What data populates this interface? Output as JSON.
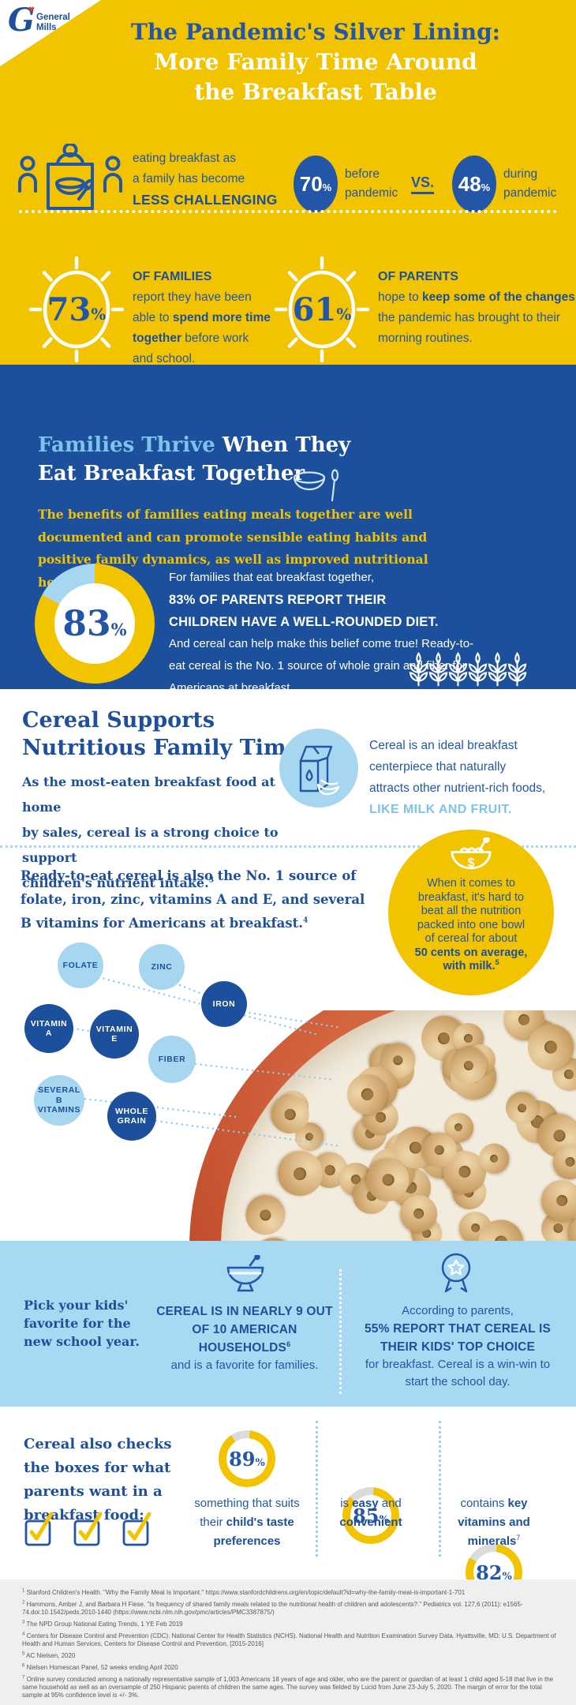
{
  "colors": {
    "yellow": "#F2C400",
    "deep_blue": "#1D4F9C",
    "blue": "#2456A8",
    "sky": "#7EC3EA",
    "light_blue": "#A6D6F0",
    "band_blue": "#A8D9F2",
    "gap_gray": "#DBDBDB",
    "bowl_red": "#BC4A2D",
    "milk": "#F2ECDF",
    "heart_red": "#E8352E",
    "footnote_bg": "#EFEFEF",
    "footnote_text": "#58595B",
    "white": "#FFFFFF"
  },
  "brand": {
    "monogram": "G",
    "heart": "♥",
    "line1": "General",
    "line2": "Mills"
  },
  "hero": {
    "title_l1": "The Pandemic's Silver Lining:",
    "title_l2": "More Family Time Around",
    "title_l3": "the Breakfast Table",
    "challenge_l1": "eating breakfast as",
    "challenge_l2": "a family has become",
    "challenge_l3": "LESS CHALLENGING",
    "before": {
      "value": "70",
      "unit": "%",
      "label_l1": "before",
      "label_l2": "pandemic"
    },
    "vs": "VS.",
    "during": {
      "value": "48",
      "unit": "%",
      "label_l1": "during",
      "label_l2": "pandemic"
    },
    "families": {
      "value": "73",
      "unit": "%",
      "title": "OF FAMILIES",
      "t1": "report they have been able to ",
      "b1": "spend more time together",
      "t2": " before work and school."
    },
    "parents": {
      "value": "61",
      "unit": "%",
      "title": "OF PARENTS",
      "t1": "hope to ",
      "b1": "keep some of the changes",
      "t2": " the pandemic has brought to their morning routines."
    }
  },
  "thrive": {
    "heading_accent": "Families Thrive",
    "heading_rest": " When They",
    "heading_l2": "Eat Breakfast Together",
    "intro_l1": "The benefits of families eating meals together are well",
    "intro_l2": "documented and can promote sensible eating habits and",
    "intro_l3": "positive family dynamics, as well as improved nutritional health.",
    "intro_sup": "1,2",
    "donut_value": "83",
    "donut_unit": "%",
    "caption_t1": "For families that eat breakfast together,",
    "caption_b1": "83% OF PARENTS REPORT THEIR CHILDREN HAVE A WELL-ROUNDED DIET.",
    "caption_t2": "And cereal can help make this belief come true! Ready-to-eat cereal is the No. 1 source of whole grain and fiber for Americans at breakfast."
  },
  "support": {
    "heading_l1": "Cereal Supports",
    "heading_l2": "Nutritious Family Time",
    "body_l1": "As the most-eaten breakfast food at home",
    "body_l2": "by sales, cereal is a strong choice to support",
    "body_l3": "children's nutrient intake.",
    "body_sup": "3",
    "milk_l1": "Cereal is an ideal breakfast",
    "milk_l2": "centerpiece that naturally",
    "milk_l3": "attracts other nutrient-rich foods,",
    "milk_accent": "LIKE MILK AND FRUIT."
  },
  "nutrients": {
    "intro_l1": "Ready-to-eat cereal is also the No. 1 source of",
    "intro_l2": "folate, iron, zinc, vitamins A and E, and several",
    "intro_l3": "B vitamins for Americans at breakfast.",
    "intro_sup": "4",
    "bubbles": [
      {
        "label": "FOLATE",
        "tone": "light"
      },
      {
        "label": "ZINC",
        "tone": "light"
      },
      {
        "label": "IRON",
        "tone": "dark"
      },
      {
        "label": "VITAMIN A",
        "tone": "dark"
      },
      {
        "label": "VITAMIN E",
        "tone": "dark"
      },
      {
        "label": "FIBER",
        "tone": "light"
      },
      {
        "label": "SEVERAL B VITAMINS",
        "tone": "light"
      },
      {
        "label": "WHOLE GRAIN",
        "tone": "dark"
      }
    ],
    "cost_l1": "When it comes to",
    "cost_l2": "breakfast, it's hard to",
    "cost_l3": "beat all the nutrition",
    "cost_l4": "packed into one bowl",
    "cost_l5": "of cereal for about",
    "cost_b1": "50 cents on average,",
    "cost_b2": "with milk.",
    "cost_sup": "5"
  },
  "school": {
    "left_l1": "Pick your kids'",
    "left_l2": "favorite for the",
    "left_l3": "new school year.",
    "mid_b1": "CEREAL IS IN NEARLY 9 OUT OF 10 AMERICAN HOUSEHOLDS",
    "mid_sup": "6",
    "mid_t1": "and is a favorite for families.",
    "right_t1": "According to parents,",
    "right_b1": "55% REPORT THAT CEREAL IS THEIR KIDS' TOP CHOICE",
    "right_t2": "for breakfast. Cereal is a win-win to start the school day."
  },
  "checks": {
    "intro_l1": "Cereal also checks",
    "intro_l2": "the boxes for what",
    "intro_l3": "parents want in a",
    "intro_l4": "breakfast food:",
    "items": [
      {
        "value": "89",
        "unit": "%",
        "t1": "something that suits their ",
        "b1": "child's taste preferences",
        "sup": ""
      },
      {
        "value": "85",
        "unit": "%",
        "t1": "is ",
        "b1": "easy",
        "t2": " and ",
        "b2": "convenient",
        "sup": ""
      },
      {
        "value": "82",
        "unit": "%",
        "t1": "contains ",
        "b1": "key vitamins and minerals",
        "sup": "7"
      }
    ]
  },
  "footnotes": [
    {
      "n": "1",
      "text": "Stanford Children's Health. \"Why the Family Meal Is Important.\" https://www.stanfordchildrens.org/en/topic/default?id=why-the-family-meal-is-important-1-701"
    },
    {
      "n": "2",
      "text": "Hammons, Amber J, and Barbara H Fiese. \"Is frequency of shared family meals related to the nutritional health of children and adolescents?.\" Pediatrics vol. 127,6 (2011): e1565-74.doi:10.1542/peds.2010-1440 (https://www.ncbi.nlm.nih.gov/pmc/articles/PMC3387875/)"
    },
    {
      "n": "3",
      "text": "The NPD Group National Eating Trends, 1 YE Feb 2019"
    },
    {
      "n": "4",
      "text": "Centers for Disease Control and Prevention (CDC). National Center for Health Statistics (NCHS). National Health and Nutrition Examination Survey Data. Hyattsville, MD: U.S. Department of Health and Human Services, Centers for Disease Control and Prevention, [2015-2016]"
    },
    {
      "n": "5",
      "text": "AC Nielsen, 2020"
    },
    {
      "n": "6",
      "text": "Nielsen Homescan Panel, 52 weeks ending April 2020"
    },
    {
      "n": "7",
      "text": "Online survey conducted among a nationally representative sample of 1,003 Americans 18 years of age and older, who are the parent or guardian of at least 1 child aged 5-18 that live in the same household as well as an oversample of 250 Hispanic parents of children the same ages. The survey was fielded by Lucid from June 23-July 5, 2020. The margin of error for the total sample at 95% confidence level is +/- 3%."
    }
  ],
  "chart_data": [
    {
      "type": "pie",
      "title": "Eating breakfast as a family is challenging",
      "categories": [
        "before pandemic",
        "during pandemic"
      ],
      "values": [
        70,
        48
      ],
      "unit": "%"
    },
    {
      "type": "pie",
      "title": "Families able to spend more time together before work and school",
      "values": [
        73
      ],
      "unit": "%"
    },
    {
      "type": "pie",
      "title": "Parents hoping to keep pandemic changes to morning routines",
      "values": [
        61
      ],
      "unit": "%"
    },
    {
      "type": "pie",
      "title": "Parents reporting children have a well-rounded diet (families that eat breakfast together)",
      "values": [
        83,
        17
      ],
      "colors": [
        "#F2C400",
        "#A6D6F0"
      ]
    },
    {
      "type": "pie",
      "title": "Cereal is in nearly 9 out of 10 American households",
      "values": [
        90
      ],
      "unit": "%"
    },
    {
      "type": "pie",
      "title": "Parents reporting cereal is their kids' top choice for breakfast",
      "values": [
        55
      ],
      "unit": "%"
    },
    {
      "type": "pie",
      "title": "Something that suits their child's taste preferences",
      "values": [
        89,
        11
      ],
      "colors": [
        "#F2C400",
        "#DBDBDB"
      ]
    },
    {
      "type": "pie",
      "title": "Is easy and convenient",
      "values": [
        85,
        15
      ],
      "colors": [
        "#F2C400",
        "#DBDBDB"
      ]
    },
    {
      "type": "pie",
      "title": "Contains key vitamins and minerals",
      "values": [
        82,
        18
      ],
      "colors": [
        "#F2C400",
        "#DBDBDB"
      ]
    }
  ]
}
